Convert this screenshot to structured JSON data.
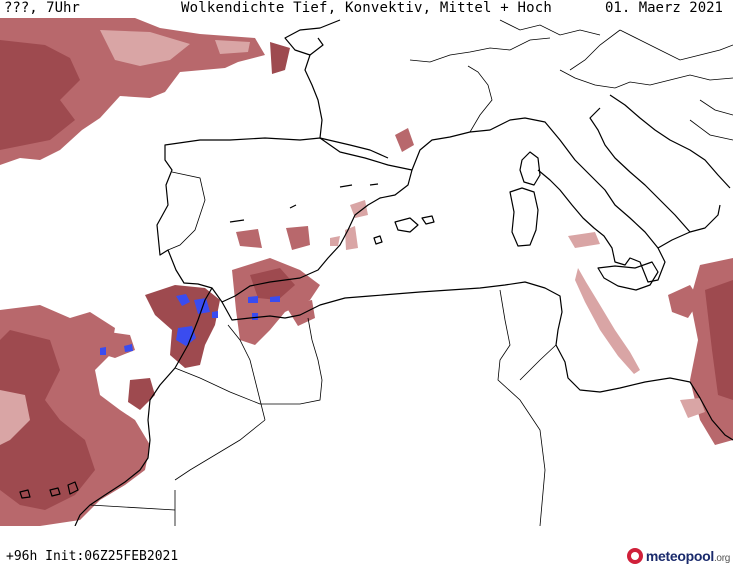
{
  "header": {
    "valid_time": "???, 7Uhr",
    "title": "Wolkendichte  Tief, Konvektiv, Mittel + Hoch",
    "date": "01. Maerz 2021"
  },
  "footer": {
    "run_info": "+96h Init:06Z25FEB2021",
    "logo_name": "meteopool",
    "logo_suffix": ".org"
  },
  "map": {
    "region": "Western Mediterranean",
    "colors": {
      "cloud_dark": "#9e4a4f",
      "cloud_mid": "#b8686c",
      "cloud_light": "#d9a5a5",
      "convective": "#3a4cf0",
      "coastline": "#000000",
      "background": "#ffffff"
    }
  }
}
